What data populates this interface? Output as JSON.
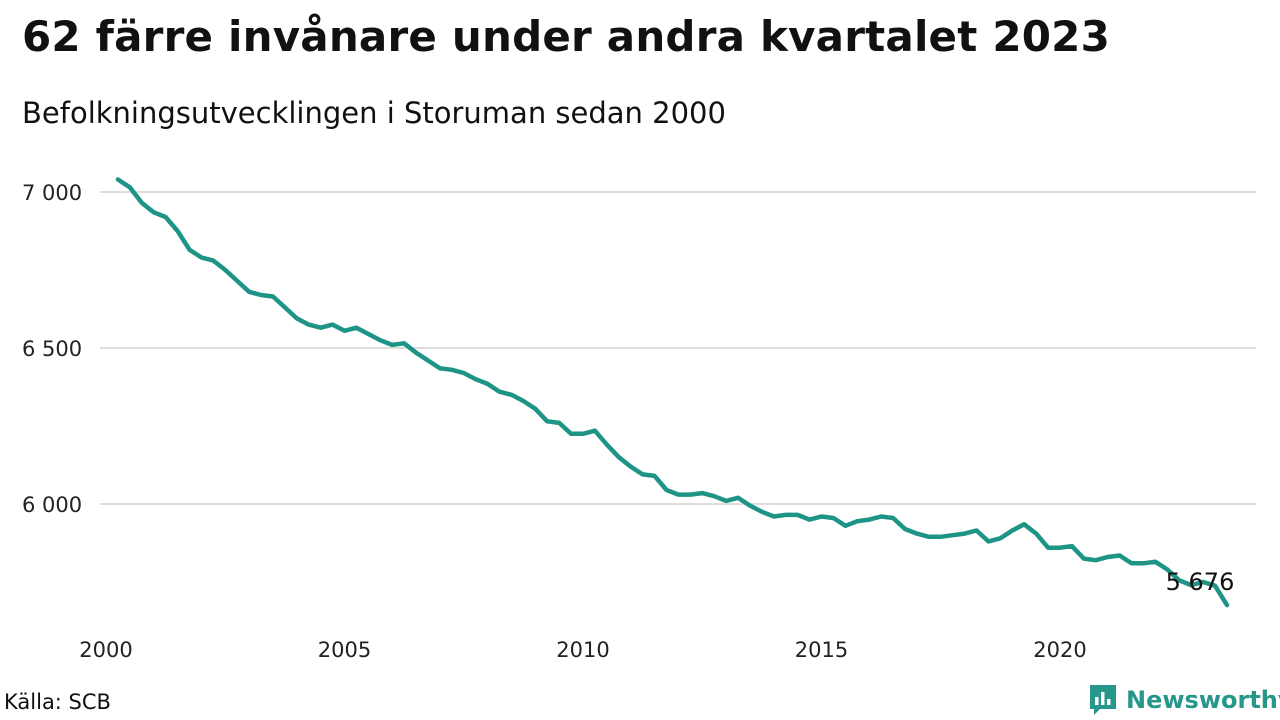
{
  "header": {
    "title": "62 färre invånare under andra kvartalet 2023",
    "subtitle": "Befolkningsutvecklingen i Storuman sedan 2000"
  },
  "footer": {
    "source": "Källa: SCB",
    "brand": "Newsworthy",
    "brand_icon": "chart-logo-icon"
  },
  "chart_data": {
    "type": "line",
    "title": "62 färre invånare under andra kvartalet 2023",
    "subtitle": "Befolkningsutvecklingen i Storuman sedan 2000",
    "xlabel": "",
    "ylabel": "",
    "x_ticks": [
      "2000",
      "2005",
      "2010",
      "2015",
      "2020"
    ],
    "y_ticks": [
      6000,
      6500,
      7000
    ],
    "y_tick_labels": [
      "6 000",
      "6 500",
      "7 000"
    ],
    "ylim": [
      5650,
      7050
    ],
    "xlim": [
      2000,
      2024
    ],
    "grid": true,
    "line_color": "#1e9486",
    "end_label": "5 676",
    "series": [
      {
        "x": [
          "2000Q1",
          "2000Q2",
          "2000Q3",
          "2000Q4",
          "2001Q1",
          "2001Q2",
          "2001Q3",
          "2001Q4",
          "2002Q1",
          "2002Q2",
          "2002Q3",
          "2002Q4",
          "2003Q1",
          "2003Q2",
          "2003Q3",
          "2003Q4",
          "2004Q1",
          "2004Q2",
          "2004Q3",
          "2004Q4",
          "2005Q1",
          "2005Q2",
          "2005Q3",
          "2005Q4",
          "2006Q1",
          "2006Q2",
          "2006Q3",
          "2006Q4",
          "2007Q1",
          "2007Q2",
          "2007Q3",
          "2007Q4",
          "2008Q1",
          "2008Q2",
          "2008Q3",
          "2008Q4",
          "2009Q1",
          "2009Q2",
          "2009Q3",
          "2009Q4",
          "2010Q1",
          "2010Q2",
          "2010Q3",
          "2010Q4",
          "2011Q1",
          "2011Q2",
          "2011Q3",
          "2011Q4",
          "2012Q1",
          "2012Q2",
          "2012Q3",
          "2012Q4",
          "2013Q1",
          "2013Q2",
          "2013Q3",
          "2013Q4",
          "2014Q1",
          "2014Q2",
          "2014Q3",
          "2014Q4",
          "2015Q1",
          "2015Q2",
          "2015Q3",
          "2015Q4",
          "2016Q1",
          "2016Q2",
          "2016Q3",
          "2016Q4",
          "2017Q1",
          "2017Q2",
          "2017Q3",
          "2017Q4",
          "2018Q1",
          "2018Q2",
          "2018Q3",
          "2018Q4",
          "2019Q1",
          "2019Q2",
          "2019Q3",
          "2019Q4",
          "2020Q1",
          "2020Q2",
          "2020Q3",
          "2020Q4",
          "2021Q1",
          "2021Q2",
          "2021Q3",
          "2021Q4",
          "2022Q1",
          "2022Q2",
          "2022Q3",
          "2022Q4",
          "2023Q1",
          "2023Q2"
        ],
        "values": [
          7040,
          7015,
          6965,
          6935,
          6920,
          6875,
          6815,
          6790,
          6780,
          6750,
          6715,
          6680,
          6670,
          6665,
          6630,
          6595,
          6575,
          6565,
          6575,
          6555,
          6565,
          6545,
          6525,
          6510,
          6515,
          6485,
          6460,
          6435,
          6430,
          6420,
          6400,
          6385,
          6360,
          6350,
          6330,
          6305,
          6265,
          6260,
          6225,
          6225,
          6235,
          6190,
          6150,
          6120,
          6095,
          6090,
          6045,
          6030,
          6030,
          6035,
          6025,
          6010,
          6020,
          5995,
          5975,
          5960,
          5965,
          5965,
          5950,
          5960,
          5955,
          5930,
          5945,
          5950,
          5960,
          5955,
          5920,
          5905,
          5895,
          5895,
          5900,
          5905,
          5915,
          5880,
          5890,
          5915,
          5935,
          5905,
          5860,
          5860,
          5865,
          5825,
          5820,
          5830,
          5835,
          5810,
          5810,
          5815,
          5790,
          5755,
          5740,
          5750,
          5738,
          5676
        ]
      }
    ]
  }
}
